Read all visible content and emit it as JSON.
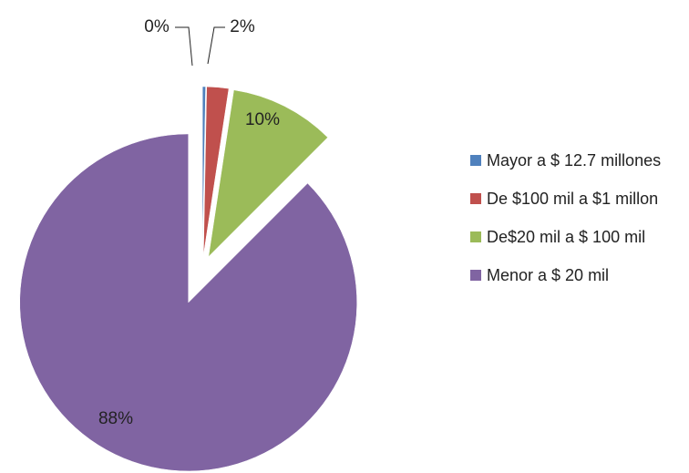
{
  "chart_data": {
    "type": "pie",
    "categories": [
      "Mayor a $ 12.7 millones",
      "De $100 mil a $1 millon",
      "De$20 mil a $ 100 mil",
      "Menor a $ 20 mil"
    ],
    "values": [
      0.3,
      2.1,
      10.1,
      87.5
    ],
    "value_labels": [
      "0%",
      "2%",
      "10%",
      "88%"
    ],
    "colors": [
      "#4f81bd",
      "#c0504d",
      "#9bbb59",
      "#8064a2"
    ],
    "legend": "right"
  }
}
